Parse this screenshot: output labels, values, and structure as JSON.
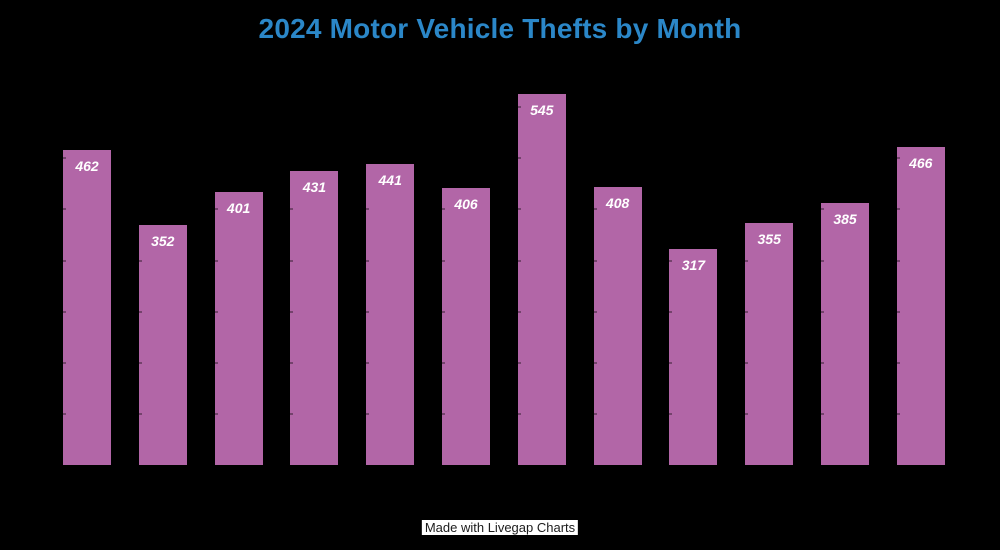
{
  "title": "2024 Motor Vehicle Thefts by Month",
  "watermark": "Made with Livegap Charts",
  "colors": {
    "background": "#000000",
    "bar": "#b266a7",
    "title": "#2b87c8",
    "data_label": "#ffffff",
    "watermark_bg": "#ffffff",
    "watermark_text": "#1c1c1c"
  },
  "chart_data": {
    "type": "bar",
    "title": "2024 Motor Vehicle Thefts by Month",
    "values": [
      462,
      352,
      401,
      431,
      441,
      406,
      545,
      408,
      317,
      355,
      385,
      466
    ],
    "show_data_labels": true,
    "xlabel": "",
    "ylabel": "",
    "ylim": [
      0,
      600
    ],
    "gridline_step": 75,
    "x_axis_tick_labels_visible": false,
    "y_axis_tick_labels_visible": false,
    "legend": false,
    "bar_count": 12
  }
}
